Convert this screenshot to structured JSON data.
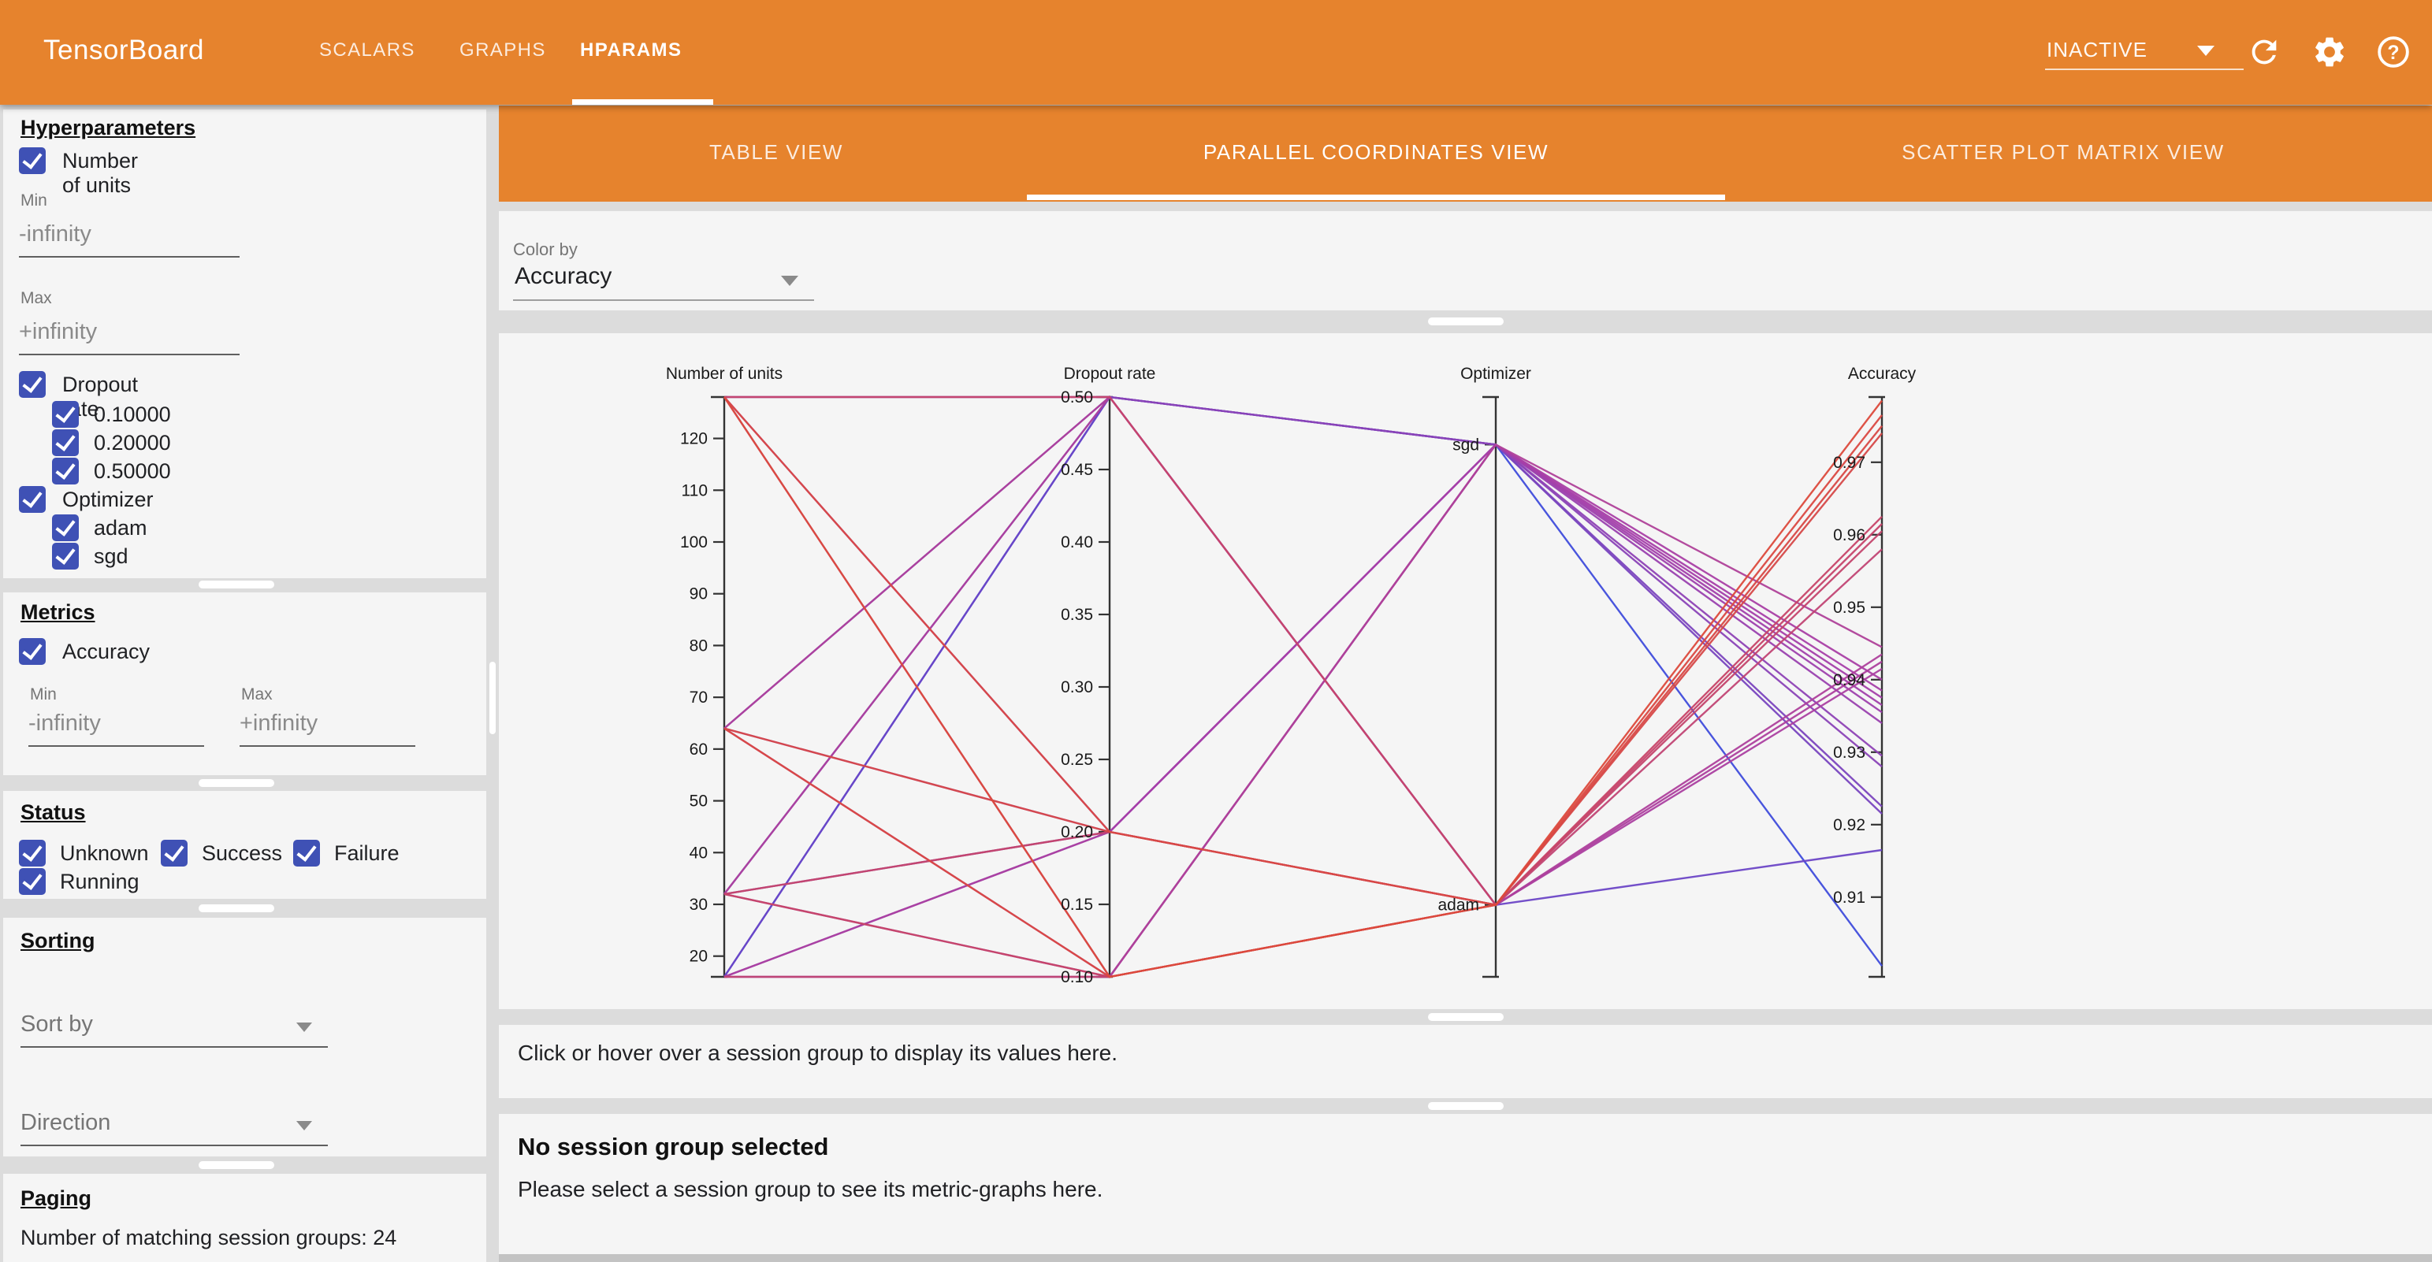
{
  "colors": {
    "appbar_orange": "#e6832d",
    "checkbox_indigo": "#3f51b5",
    "card_bg": "#f5f5f5",
    "gap_gray": "#dcdcdc"
  },
  "header": {
    "title": "TensorBoard",
    "nav_tabs": [
      "SCALARS",
      "GRAPHS",
      "HPARAMS"
    ],
    "active_nav_tab": "HPARAMS",
    "run_status": "INACTIVE"
  },
  "sidebar": {
    "hyperparameters": {
      "title": "Hyperparameters",
      "number_of_units": {
        "label": "Number of units",
        "checked": true,
        "min_label": "Min",
        "min_value": "-infinity",
        "max_label": "Max",
        "max_value": "+infinity"
      },
      "dropout_rate": {
        "label": "Dropout rate",
        "checked": true,
        "children": [
          "0.10000",
          "0.20000",
          "0.50000"
        ]
      },
      "optimizer": {
        "label": "Optimizer",
        "checked": true,
        "children": [
          "adam",
          "sgd"
        ]
      }
    },
    "metrics": {
      "title": "Metrics",
      "accuracy_label": "Accuracy",
      "checked": true,
      "min_label": "Min",
      "min_value": "-infinity",
      "max_label": "Max",
      "max_value": "+infinity"
    },
    "status": {
      "title": "Status",
      "options": [
        "Unknown",
        "Success",
        "Failure",
        "Running"
      ]
    },
    "sorting": {
      "title": "Sorting",
      "sort_by_placeholder": "Sort by",
      "direction_placeholder": "Direction"
    },
    "paging": {
      "title": "Paging",
      "summary": "Number of matching session groups: 24"
    }
  },
  "main": {
    "view_tabs": [
      "TABLE VIEW",
      "PARALLEL COORDINATES VIEW",
      "SCATTER PLOT MATRIX VIEW"
    ],
    "active_view_tab": "PARALLEL COORDINATES VIEW",
    "color_by": {
      "label": "Color by",
      "value": "Accuracy"
    },
    "hint": "Click or hover over a session group to display its values here.",
    "empty_state": {
      "title": "No session group selected",
      "body": "Please select a session group to see its metric-graphs here."
    }
  },
  "chart_data": {
    "type": "parallel_coordinates",
    "title": "",
    "color_scale": {
      "by": "Accuracy",
      "domain": [
        0.899,
        0.979
      ],
      "stops": [
        "#3b4cdd",
        "#a83fa8",
        "#dd4a3b"
      ]
    },
    "axes": [
      {
        "name": "Number of units",
        "type": "numeric",
        "domain": [
          16,
          128
        ],
        "ticks": [
          20,
          30,
          40,
          50,
          60,
          70,
          80,
          90,
          100,
          110,
          120
        ],
        "decimals": 0
      },
      {
        "name": "Dropout rate",
        "type": "numeric",
        "domain": [
          0.1,
          0.5
        ],
        "ticks": [
          0.1,
          0.15,
          0.2,
          0.25,
          0.3,
          0.35,
          0.4,
          0.45,
          0.5
        ],
        "decimals": 2
      },
      {
        "name": "Optimizer",
        "type": "categorical",
        "categories": [
          {
            "label": "adam",
            "pos": 0.124
          },
          {
            "label": "sgd",
            "pos": 0.918
          }
        ]
      },
      {
        "name": "Accuracy",
        "type": "numeric",
        "domain": [
          0.899,
          0.979
        ],
        "ticks": [
          0.91,
          0.92,
          0.93,
          0.94,
          0.95,
          0.96,
          0.97
        ],
        "decimals": 2
      }
    ],
    "columns": [
      "number_of_units",
      "dropout_rate",
      "optimizer",
      "accuracy"
    ],
    "sessions": [
      [
        128,
        0.1,
        "adam",
        0.9785
      ],
      [
        128,
        0.2,
        "adam",
        0.975
      ],
      [
        128,
        0.5,
        "adam",
        0.9615
      ],
      [
        64,
        0.1,
        "adam",
        0.9765
      ],
      [
        64,
        0.2,
        "adam",
        0.974
      ],
      [
        64,
        0.5,
        "adam",
        0.9435
      ],
      [
        32,
        0.1,
        "adam",
        0.9625
      ],
      [
        32,
        0.2,
        "adam",
        0.9605
      ],
      [
        32,
        0.5,
        "adam",
        0.9425
      ],
      [
        16,
        0.1,
        "adam",
        0.958
      ],
      [
        16,
        0.2,
        "adam",
        0.9415
      ],
      [
        16,
        0.5,
        "adam",
        0.9165
      ],
      [
        128,
        0.1,
        "sgd",
        0.9445
      ],
      [
        128,
        0.2,
        "sgd",
        0.9385
      ],
      [
        128,
        0.5,
        "sgd",
        0.928
      ],
      [
        64,
        0.1,
        "sgd",
        0.94
      ],
      [
        64,
        0.2,
        "sgd",
        0.9375
      ],
      [
        64,
        0.5,
        "sgd",
        0.9225
      ],
      [
        32,
        0.1,
        "sgd",
        0.9365
      ],
      [
        32,
        0.2,
        "sgd",
        0.934
      ],
      [
        32,
        0.5,
        "sgd",
        0.9215
      ],
      [
        16,
        0.1,
        "sgd",
        0.9355
      ],
      [
        16,
        0.2,
        "sgd",
        0.9295
      ],
      [
        16,
        0.5,
        "sgd",
        0.9005
      ]
    ]
  }
}
